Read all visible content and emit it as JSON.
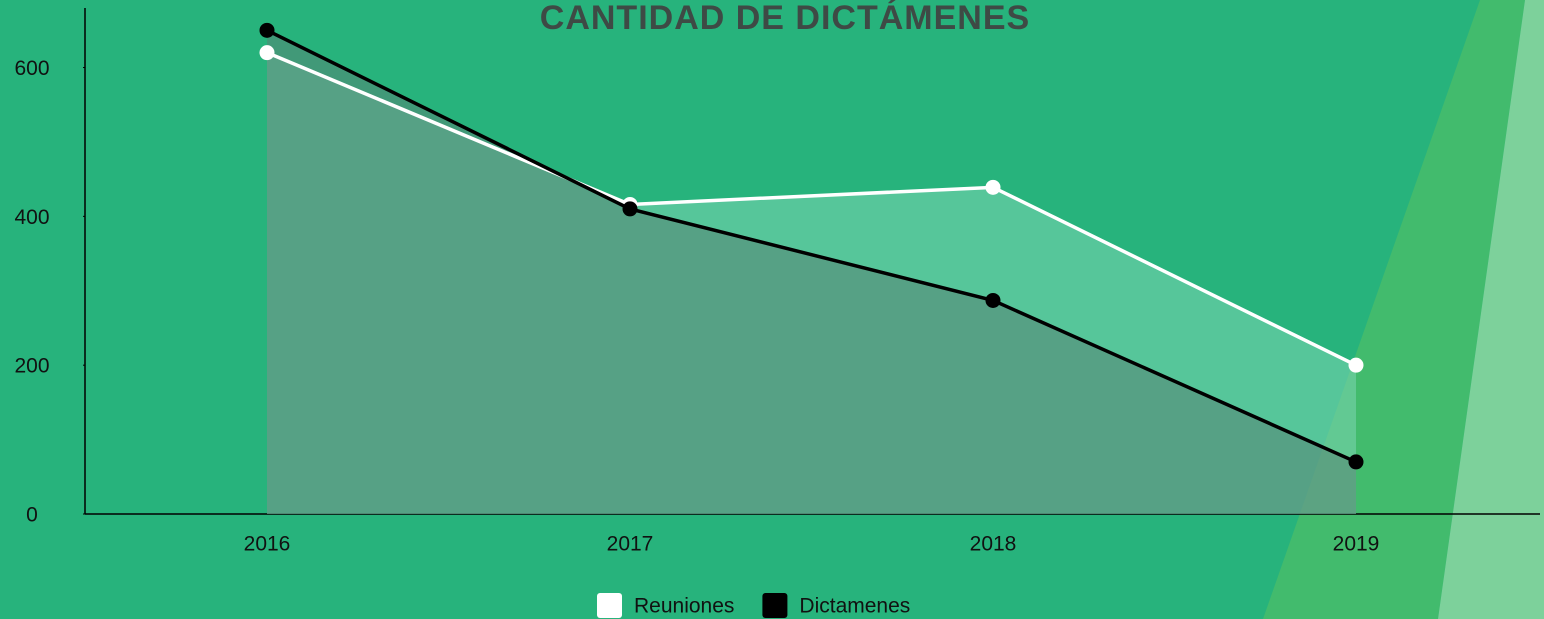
{
  "chart_data": {
    "type": "area",
    "title": "CANTIDAD DE DICTÁMENES",
    "categories": [
      "2016",
      "2017",
      "2018",
      "2019"
    ],
    "series": [
      {
        "name": "Reuniones",
        "color": "#ffffff",
        "values": [
          620,
          416,
          439,
          200
        ]
      },
      {
        "name": "Dictamenes",
        "color": "#000000",
        "values": [
          650,
          410,
          287,
          70
        ]
      }
    ],
    "ylim": [
      0,
      680
    ],
    "yticks": [
      0,
      200,
      400,
      600
    ],
    "legend": "bottom"
  }
}
